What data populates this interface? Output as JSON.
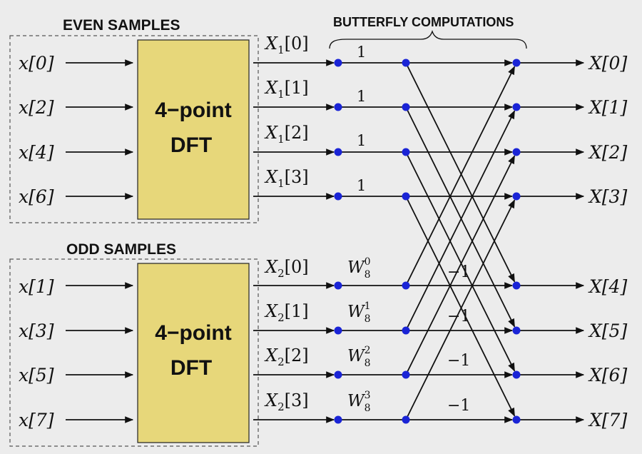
{
  "groups": {
    "even": {
      "heading": "EVEN SAMPLES",
      "inputs": [
        "x[0]",
        "x[2]",
        "x[4]",
        "x[6]"
      ],
      "box_line1": "4−point",
      "box_line2": "DFT",
      "outputs": [
        {
          "base": "X",
          "sub": "1",
          "idx": "[0]"
        },
        {
          "base": "X",
          "sub": "1",
          "idx": "[1]"
        },
        {
          "base": "X",
          "sub": "1",
          "idx": "[2]"
        },
        {
          "base": "X",
          "sub": "1",
          "idx": "[3]"
        }
      ]
    },
    "odd": {
      "heading": "ODD SAMPLES",
      "inputs": [
        "x[1]",
        "x[3]",
        "x[5]",
        "x[7]"
      ],
      "box_line1": "4−point",
      "box_line2": "DFT",
      "outputs": [
        {
          "base": "X",
          "sub": "2",
          "idx": "[0]"
        },
        {
          "base": "X",
          "sub": "2",
          "idx": "[1]"
        },
        {
          "base": "X",
          "sub": "2",
          "idx": "[2]"
        },
        {
          "base": "X",
          "sub": "2",
          "idx": "[3]"
        }
      ]
    }
  },
  "butterfly_heading": "BUTTERFLY COMPUTATIONS",
  "weights_top": [
    "1",
    "1",
    "1",
    "1"
  ],
  "weights_bottom": [
    {
      "base": "W",
      "sub": "8",
      "sup": "0"
    },
    {
      "base": "W",
      "sub": "8",
      "sup": "1"
    },
    {
      "base": "W",
      "sub": "8",
      "sup": "2"
    },
    {
      "base": "W",
      "sub": "8",
      "sup": "3"
    }
  ],
  "minus_ones": [
    "−1",
    "−1",
    "−1",
    "−1"
  ],
  "final_outputs": [
    "X[0]",
    "X[1]",
    "X[2]",
    "X[3]",
    "X[4]",
    "X[5]",
    "X[6]",
    "X[7]"
  ],
  "colors": {
    "background": "#ececec",
    "box_fill": "#e7d77a",
    "node": "#1a24d6",
    "line": "#111111",
    "dashed_border": "#555555"
  }
}
